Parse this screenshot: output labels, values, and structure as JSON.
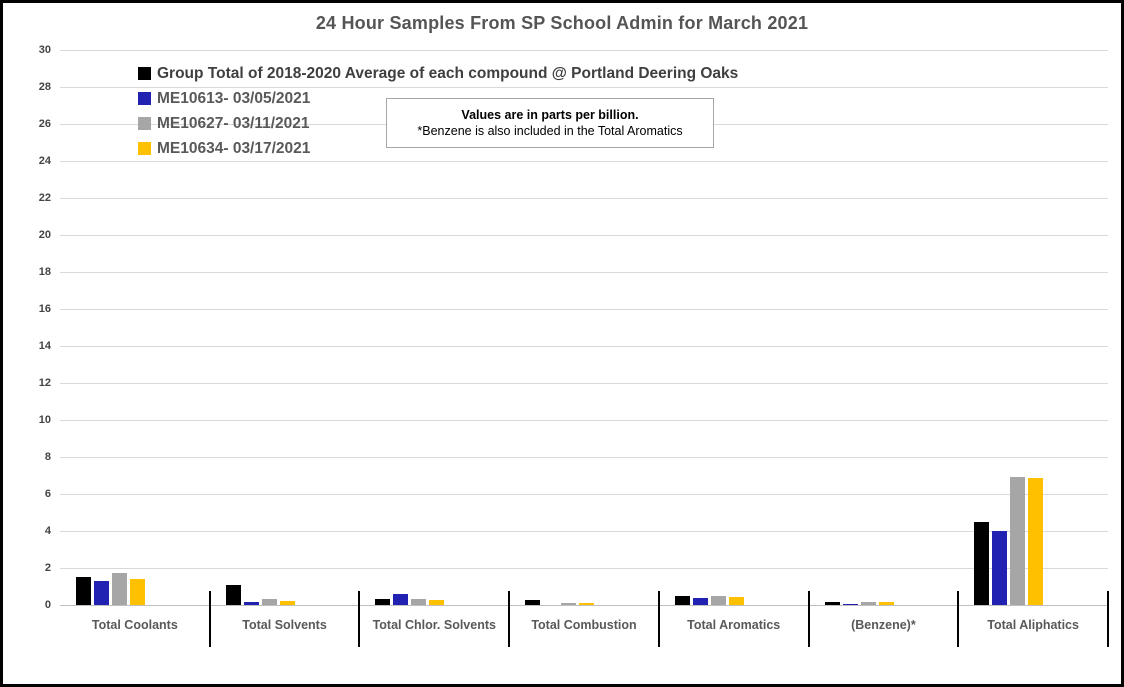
{
  "title": "24 Hour Samples From SP School Admin for March 2021",
  "note": {
    "line1": "Values are in parts per billion.",
    "line2": "*Benzene is also included in the Total Aromatics"
  },
  "chart_data": {
    "type": "bar",
    "title": "24 Hour Samples From SP School Admin for March 2021",
    "categories": [
      "Total Coolants",
      "Total Solvents",
      "Total Chlor. Solvents",
      "Total Combustion",
      "Total Aromatics",
      "(Benzene)*",
      "Total Aliphatics"
    ],
    "series": [
      {
        "name": "Group Total of 2018-2020 Average of each compound @ Portland Deering Oaks",
        "color": "#000000",
        "values": [
          1.5,
          1.1,
          0.35,
          0.25,
          0.5,
          0.15,
          4.5
        ]
      },
      {
        "name": "ME10613- 03/05/2021",
        "color": "#2222b2",
        "values": [
          1.3,
          0.15,
          0.6,
          0,
          0.4,
          0.05,
          4.0
        ]
      },
      {
        "name": "ME10627- 03/11/2021",
        "color": "#a6a6a6",
        "values": [
          1.75,
          0.35,
          0.35,
          0.1,
          0.5,
          0.15,
          6.9
        ]
      },
      {
        "name": "ME10634- 03/17/2021",
        "color": "#ffc000",
        "values": [
          1.4,
          0.2,
          0.25,
          0.1,
          0.45,
          0.15,
          6.85
        ]
      }
    ],
    "xlabel": "",
    "ylabel": "",
    "ylim": [
      0,
      30
    ],
    "ytick_step": 2,
    "grid": true,
    "legend_position": "top-left",
    "units": "parts per billion"
  },
  "colors": {
    "title_text": "#555555",
    "axis_text": "#444444",
    "category_text": "#595959",
    "gridline": "#d9d9d9",
    "axis_line": "#bfbfbf",
    "separator_tick": "#000000",
    "note_border": "#a6a6a6",
    "frame_border": "#000000"
  }
}
